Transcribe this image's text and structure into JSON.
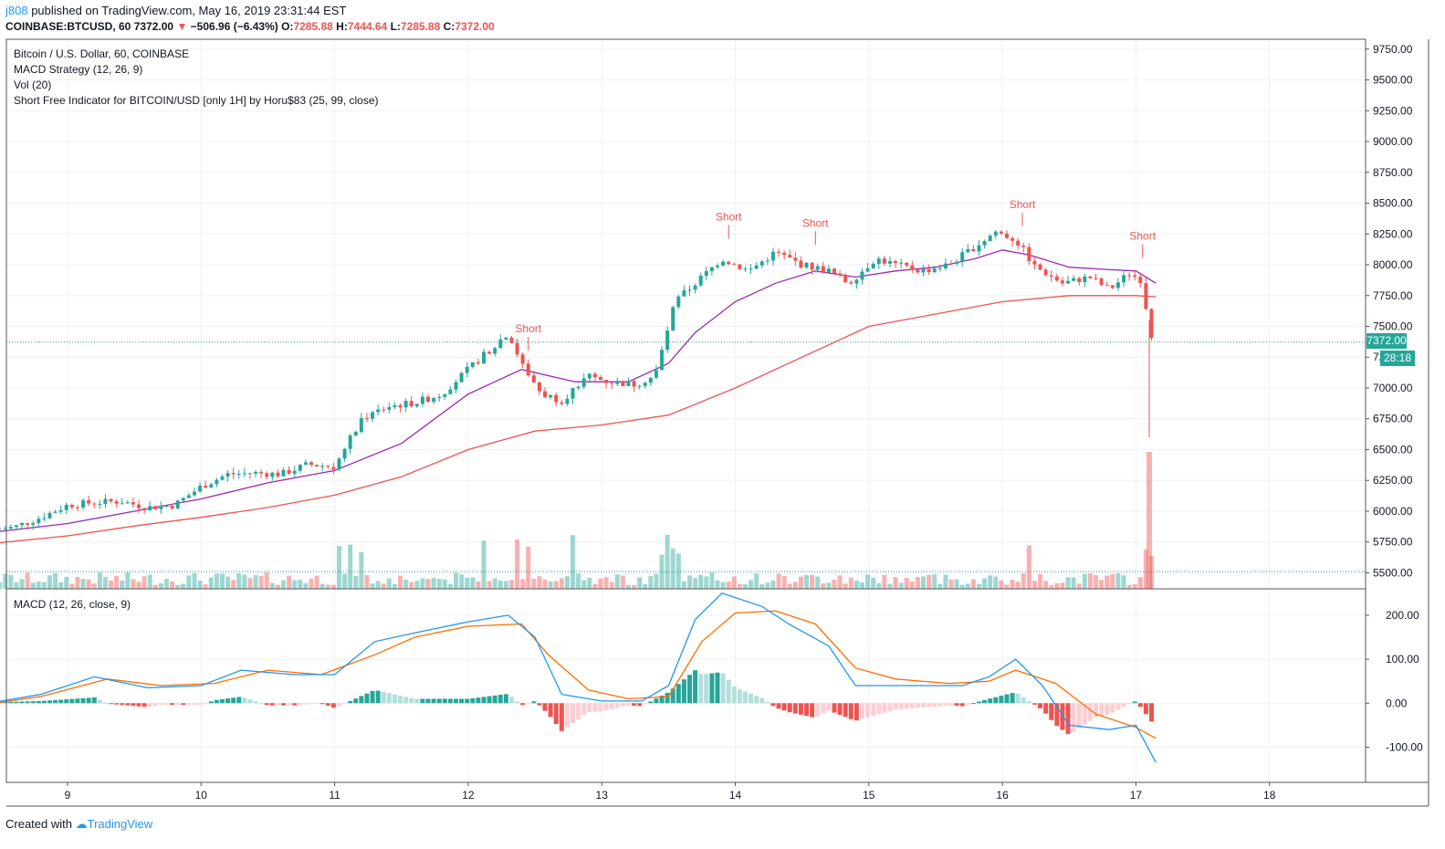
{
  "header": {
    "user": "j808",
    "published": "published on TradingView.com, May 16, 2019 23:31:44 EST",
    "symbol": "COINBASE:BTCUSD, 60",
    "last": "7372.00",
    "change": "−506.96 (−6.43%)",
    "o_label": "O:",
    "o_val": "7285.88",
    "h_label": "H:",
    "h_val": "7444.64",
    "l_label": "L:",
    "l_val": "7285.88",
    "c_label": "C:",
    "c_val": "7372.00"
  },
  "legend": {
    "title": "Bitcoin / U.S. Dollar, 60, COINBASE",
    "macd_strategy": "MACD Strategy (12, 26, 9)",
    "vol": "Vol (20)",
    "indicator": "Short Free Indicator for BITCOIN/USD [only 1H] by Horu$83 (25, 99, close)",
    "macd_pane": "MACD (12, 26, close, 9)"
  },
  "price_tag": {
    "value": "7372.00",
    "countdown": "28:18"
  },
  "footer": {
    "created": "Created with",
    "brand": "TradingView"
  },
  "colors": {
    "up": "#26a69a",
    "down": "#ef5350",
    "ma_short": "#9c27b0",
    "ma_long": "#ef5350",
    "macd": "#2196f3",
    "signal": "#ff6d00"
  },
  "chart_data": {
    "type": "candlestick",
    "price_ticks": [
      "9750.00",
      "9500.00",
      "9250.00",
      "9000.00",
      "8750.00",
      "8500.00",
      "8250.00",
      "8000.00",
      "7750.00",
      "7500.00",
      "7250.00",
      "7000.00",
      "6750.00",
      "6500.00",
      "6250.00",
      "6000.00",
      "5750.00",
      "5500.00"
    ],
    "macd_ticks": [
      "200.00",
      "100.00",
      "0.00",
      "-100.00"
    ],
    "x_ticks": [
      "9",
      "10",
      "11",
      "12",
      "13",
      "14",
      "15",
      "16",
      "17",
      "18"
    ],
    "ylim": [
      5370,
      9830
    ],
    "macd_ylim": [
      -180,
      260
    ],
    "close_path": [
      [
        8.45,
        5850
      ],
      [
        8.6,
        5870
      ],
      [
        8.8,
        5950
      ],
      [
        9.0,
        6050
      ],
      [
        9.2,
        6070
      ],
      [
        9.4,
        6080
      ],
      [
        9.6,
        6030
      ],
      [
        9.8,
        6050
      ],
      [
        10.0,
        6200
      ],
      [
        10.2,
        6300
      ],
      [
        10.4,
        6310
      ],
      [
        10.6,
        6300
      ],
      [
        10.8,
        6380
      ],
      [
        11.0,
        6360
      ],
      [
        11.2,
        6750
      ],
      [
        11.4,
        6850
      ],
      [
        11.6,
        6880
      ],
      [
        11.8,
        6950
      ],
      [
        12.0,
        7150
      ],
      [
        12.15,
        7300
      ],
      [
        12.3,
        7450
      ],
      [
        12.4,
        7200
      ],
      [
        12.55,
        6950
      ],
      [
        12.7,
        6900
      ],
      [
        12.9,
        7100
      ],
      [
        13.05,
        7050
      ],
      [
        13.25,
        7030
      ],
      [
        13.4,
        7100
      ],
      [
        13.55,
        7700
      ],
      [
        13.75,
        7900
      ],
      [
        13.9,
        8050
      ],
      [
        14.1,
        7950
      ],
      [
        14.3,
        8100
      ],
      [
        14.5,
        8000
      ],
      [
        14.7,
        7950
      ],
      [
        14.85,
        7850
      ],
      [
        15.05,
        8050
      ],
      [
        15.2,
        8000
      ],
      [
        15.4,
        7950
      ],
      [
        15.6,
        8000
      ],
      [
        15.8,
        8150
      ],
      [
        15.95,
        8270
      ],
      [
        16.1,
        8200
      ],
      [
        16.25,
        7980
      ],
      [
        16.45,
        7850
      ],
      [
        16.65,
        7900
      ],
      [
        16.8,
        7800
      ],
      [
        16.95,
        7930
      ],
      [
        17.05,
        7870
      ],
      [
        17.1,
        7450
      ],
      [
        17.15,
        7372
      ]
    ],
    "ma_short": [
      [
        8.45,
        5830
      ],
      [
        9.0,
        5900
      ],
      [
        9.5,
        6000
      ],
      [
        10.0,
        6100
      ],
      [
        10.5,
        6230
      ],
      [
        11.0,
        6330
      ],
      [
        11.5,
        6550
      ],
      [
        12.0,
        6950
      ],
      [
        12.4,
        7150
      ],
      [
        12.8,
        7050
      ],
      [
        13.2,
        7050
      ],
      [
        13.5,
        7200
      ],
      [
        13.7,
        7450
      ],
      [
        14.0,
        7700
      ],
      [
        14.3,
        7850
      ],
      [
        14.6,
        7950
      ],
      [
        14.9,
        7900
      ],
      [
        15.2,
        7950
      ],
      [
        15.5,
        7980
      ],
      [
        15.8,
        8050
      ],
      [
        16.0,
        8120
      ],
      [
        16.2,
        8080
      ],
      [
        16.5,
        7980
      ],
      [
        16.8,
        7960
      ],
      [
        17.0,
        7950
      ],
      [
        17.15,
        7850
      ]
    ],
    "ma_long": [
      [
        8.45,
        5740
      ],
      [
        9.0,
        5800
      ],
      [
        9.5,
        5880
      ],
      [
        10.0,
        5950
      ],
      [
        10.5,
        6030
      ],
      [
        11.0,
        6130
      ],
      [
        11.5,
        6280
      ],
      [
        12.0,
        6500
      ],
      [
        12.5,
        6650
      ],
      [
        13.0,
        6700
      ],
      [
        13.5,
        6780
      ],
      [
        14.0,
        7000
      ],
      [
        14.5,
        7250
      ],
      [
        15.0,
        7500
      ],
      [
        15.5,
        7600
      ],
      [
        16.0,
        7700
      ],
      [
        16.5,
        7750
      ],
      [
        17.0,
        7750
      ],
      [
        17.15,
        7740
      ]
    ],
    "short_signals": [
      {
        "label": "Short",
        "x": 12.45
      },
      {
        "label": "Short",
        "x": 13.95
      },
      {
        "label": "Short",
        "x": 14.6
      },
      {
        "label": "Short",
        "x": 16.15
      },
      {
        "label": "Short",
        "x": 17.05
      }
    ],
    "macd_line": [
      [
        8.45,
        2
      ],
      [
        8.8,
        20
      ],
      [
        9.2,
        60
      ],
      [
        9.6,
        35
      ],
      [
        10.0,
        40
      ],
      [
        10.3,
        75
      ],
      [
        10.7,
        65
      ],
      [
        11.0,
        65
      ],
      [
        11.3,
        140
      ],
      [
        11.6,
        160
      ],
      [
        12.0,
        185
      ],
      [
        12.3,
        200
      ],
      [
        12.5,
        150
      ],
      [
        12.7,
        20
      ],
      [
        13.0,
        5
      ],
      [
        13.3,
        5
      ],
      [
        13.5,
        40
      ],
      [
        13.7,
        190
      ],
      [
        13.9,
        250
      ],
      [
        14.2,
        220
      ],
      [
        14.4,
        180
      ],
      [
        14.7,
        130
      ],
      [
        14.9,
        40
      ],
      [
        15.3,
        40
      ],
      [
        15.7,
        40
      ],
      [
        15.9,
        60
      ],
      [
        16.1,
        100
      ],
      [
        16.3,
        40
      ],
      [
        16.5,
        -50
      ],
      [
        16.8,
        -60
      ],
      [
        17.0,
        -50
      ],
      [
        17.15,
        -135
      ]
    ],
    "signal_line": [
      [
        8.45,
        0
      ],
      [
        8.8,
        15
      ],
      [
        9.3,
        55
      ],
      [
        9.7,
        40
      ],
      [
        10.1,
        45
      ],
      [
        10.5,
        75
      ],
      [
        10.9,
        65
      ],
      [
        11.3,
        110
      ],
      [
        11.6,
        150
      ],
      [
        12.0,
        175
      ],
      [
        12.4,
        180
      ],
      [
        12.6,
        110
      ],
      [
        12.9,
        30
      ],
      [
        13.2,
        10
      ],
      [
        13.5,
        15
      ],
      [
        13.75,
        140
      ],
      [
        14.0,
        205
      ],
      [
        14.3,
        210
      ],
      [
        14.6,
        180
      ],
      [
        14.9,
        80
      ],
      [
        15.2,
        55
      ],
      [
        15.6,
        45
      ],
      [
        15.9,
        50
      ],
      [
        16.1,
        75
      ],
      [
        16.4,
        45
      ],
      [
        16.7,
        -25
      ],
      [
        17.0,
        -55
      ],
      [
        17.15,
        -80
      ]
    ]
  }
}
